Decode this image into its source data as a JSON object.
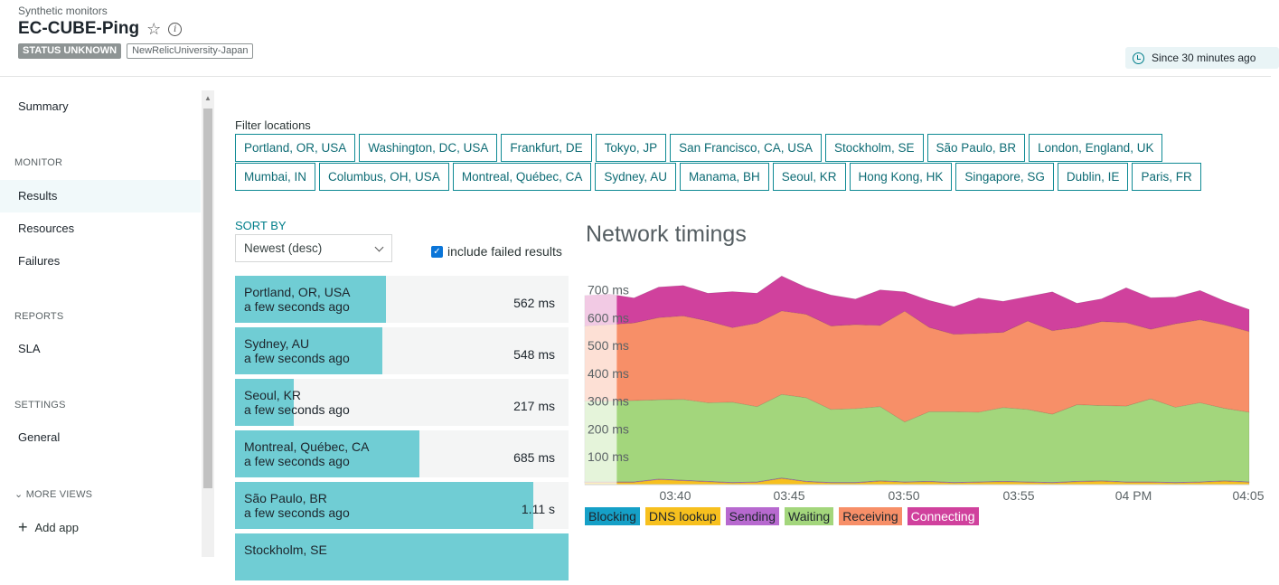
{
  "header": {
    "breadcrumb": "Synthetic monitors",
    "title": "EC-CUBE-Ping",
    "status_badge": "STATUS UNKNOWN",
    "account_tag": "NewRelicUniversity-Japan",
    "time_range": "Since 30 minutes ago"
  },
  "sidebar": {
    "summary": "Summary",
    "sections": {
      "monitor": "MONITOR",
      "reports": "REPORTS",
      "settings": "SETTINGS",
      "more_views": "MORE VIEWS"
    },
    "items": {
      "results": "Results",
      "resources": "Resources",
      "failures": "Failures",
      "sla": "SLA",
      "general": "General",
      "add_app": "Add app"
    }
  },
  "filter": {
    "label": "Filter locations",
    "locations": [
      "Portland, OR, USA",
      "Washington, DC, USA",
      "Frankfurt, DE",
      "Tokyo, JP",
      "San Francisco, CA, USA",
      "Stockholm, SE",
      "São Paulo, BR",
      "London, England, UK",
      "Mumbai, IN",
      "Columbus, OH, USA",
      "Montreal, Québec, CA",
      "Sydney, AU",
      "Manama, BH",
      "Seoul, KR",
      "Hong Kong, HK",
      "Singapore, SG",
      "Dublin, IE",
      "Paris, FR"
    ]
  },
  "sort": {
    "label": "SORT BY",
    "selected": "Newest (desc)",
    "include_failed_label": "include failed results",
    "include_failed": true
  },
  "results": [
    {
      "location": "Portland, OR, USA",
      "when": "a few seconds ago",
      "duration": "562 ms",
      "fill": 0.452
    },
    {
      "location": "Sydney, AU",
      "when": "a few seconds ago",
      "duration": "548 ms",
      "fill": 0.441
    },
    {
      "location": "Seoul, KR",
      "when": "a few seconds ago",
      "duration": "217 ms",
      "fill": 0.176
    },
    {
      "location": "Montreal, Québec, CA",
      "when": "a few seconds ago",
      "duration": "685 ms",
      "fill": 0.553
    },
    {
      "location": "São Paulo, BR",
      "when": "a few seconds ago",
      "duration": "1.11 s",
      "fill": 0.895
    },
    {
      "location": "Stockholm, SE",
      "when": "",
      "duration": "",
      "fill": 1.0
    }
  ],
  "chart_data": {
    "type": "area",
    "title": "Network timings",
    "y_ticks": [
      "100 ms",
      "200 ms",
      "300 ms",
      "400 ms",
      "500 ms",
      "600 ms",
      "700 ms"
    ],
    "x_ticks": [
      "03:40",
      "03:45",
      "03:50",
      "03:55",
      "04 PM",
      "04:05"
    ],
    "ylim": [
      0,
      780
    ],
    "stacked": true,
    "legend": [
      {
        "name": "Blocking",
        "color": "#15a0c7"
      },
      {
        "name": "DNS lookup",
        "color": "#f7c01e"
      },
      {
        "name": "Sending",
        "color": "#b769cf"
      },
      {
        "name": "Waiting",
        "color": "#a3d67c"
      },
      {
        "name": "Receiving",
        "color": "#f78f68"
      },
      {
        "name": "Connecting",
        "color": "#d0419d"
      }
    ],
    "faded_until_index": 2,
    "series": [
      {
        "name": "Blocking",
        "values": [
          0,
          0,
          0,
          0,
          0,
          0,
          0,
          0,
          0,
          0,
          0,
          0,
          0,
          0,
          0,
          0,
          0,
          0,
          0,
          0,
          0,
          0,
          0,
          0,
          0,
          0,
          0,
          0
        ]
      },
      {
        "name": "DNS lookup",
        "values": [
          8,
          8,
          8,
          18,
          14,
          10,
          6,
          8,
          22,
          10,
          6,
          6,
          12,
          8,
          10,
          6,
          8,
          10,
          8,
          6,
          10,
          12,
          8,
          8,
          6,
          8,
          12,
          8
        ]
      },
      {
        "name": "Sending",
        "values": [
          2,
          2,
          2,
          2,
          2,
          2,
          2,
          2,
          2,
          2,
          2,
          2,
          2,
          2,
          2,
          2,
          2,
          2,
          2,
          2,
          2,
          2,
          2,
          2,
          2,
          2,
          2,
          2
        ]
      },
      {
        "name": "Waiting",
        "values": [
          290,
          290,
          292,
          285,
          290,
          282,
          288,
          270,
          300,
          300,
          262,
          265,
          266,
          215,
          250,
          254,
          250,
          265,
          260,
          245,
          275,
          270,
          272,
          298,
          270,
          284,
          260,
          250
        ]
      },
      {
        "name": "Receiving",
        "values": [
          270,
          275,
          279,
          295,
          300,
          294,
          268,
          300,
          300,
          300,
          300,
          302,
          292,
          398,
          303,
          278,
          283,
          270,
          318,
          300,
          278,
          302,
          300,
          250,
          300,
          298,
          300,
          290
        ]
      },
      {
        "name": "Connecting",
        "values": [
          110,
          110,
          90,
          110,
          110,
          100,
          130,
          108,
          126,
          97,
          112,
          92,
          128,
          70,
          97,
          100,
          128,
          112,
          88,
          140,
          87,
          82,
          126,
          114,
          96,
          106,
          86,
          80
        ]
      }
    ]
  }
}
